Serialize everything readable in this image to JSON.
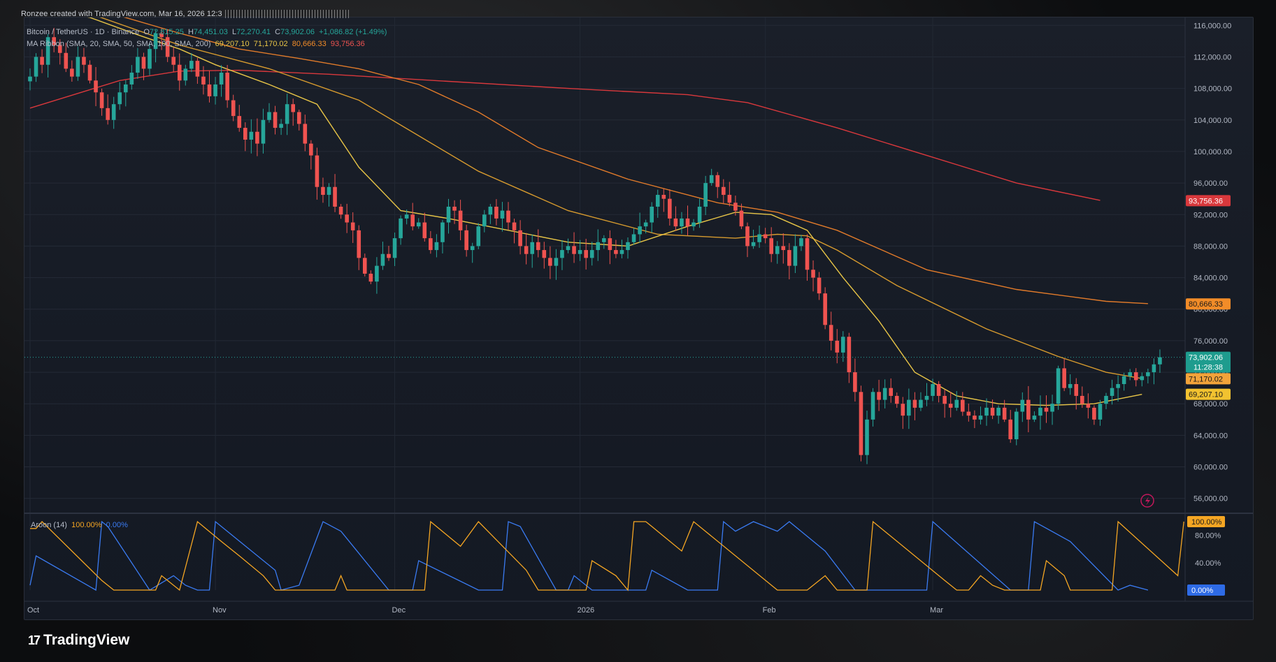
{
  "credit": "Ronzee created with TradingView.com, Mar 16, 2026 12:3",
  "header": {
    "symbol": "Bitcoin / TetherUS · 1D · Binance",
    "open_label": "O",
    "open": "72,815.25",
    "high_label": "H",
    "high": "74,451.03",
    "low_label": "L",
    "low": "72,270.41",
    "close_label": "C",
    "close": "73,902.06",
    "change": "+1,086.82 (+1.49%)",
    "ma_label": "MA Ribbon (SMA, 20, SMA, 50, SMA, 100, SMA, 200)",
    "ma_values": [
      "69,207.10",
      "71,170.02",
      "80,666.33",
      "93,756.36"
    ]
  },
  "aroon": {
    "label": "Aroon (14)",
    "up": "100.00%",
    "down": "0.00%",
    "ticks": [
      "100.00%",
      "80.00%",
      "40.00%",
      "0.00%"
    ]
  },
  "brand": {
    "logo": "17",
    "name": "TradingView"
  },
  "colors": {
    "up": "#26a69a",
    "down": "#ef5350",
    "sma20": "#e8c547",
    "sma50": "#d69a2e",
    "sma100": "#e07a2a",
    "sma200": "#d9383c",
    "aroon_up": "#f5a623",
    "aroon_down": "#3a7bf2"
  },
  "chart_data": {
    "type": "candlestick",
    "title": "Bitcoin / TetherUS · 1D · Binance",
    "y_ticks": [
      116000,
      112000,
      108000,
      104000,
      100000,
      96000,
      92000,
      88000,
      84000,
      80000,
      76000,
      72000,
      68000,
      64000,
      60000,
      56000
    ],
    "y_tick_labels": [
      "116,000.00",
      "112,000.00",
      "108,000.00",
      "104,000.00",
      "100,000.00",
      "96,000.00",
      "92,000.00",
      "88,000.00",
      "84,000.00",
      "80,000.00",
      "76,000.00",
      "72,000.00",
      "68,000.00",
      "64,000.00",
      "60,000.00",
      "56,000.00"
    ],
    "ylim": [
      55000,
      117000
    ],
    "x_labels": [
      "Oct",
      "Nov",
      "Dec",
      "2026",
      "Feb",
      "Mar"
    ],
    "x_label_index": [
      0,
      31,
      61,
      92,
      123,
      151
    ],
    "price_badges": [
      {
        "label": "93,756.36",
        "value": 93756.36,
        "color": "#d9383c",
        "text": "#ffffff"
      },
      {
        "label": "80,666.33",
        "value": 80666.33,
        "color": "#f28c28",
        "text": "#1a1a1a"
      },
      {
        "label": "73,902.06",
        "value": 73902.06,
        "color": "#1e9c8e",
        "text": "#ffffff",
        "sub": "11:28:38"
      },
      {
        "label": "71,170.02",
        "value": 71170.02,
        "color": "#f2a33a",
        "text": "#1a1a1a"
      },
      {
        "label": "69,207.10",
        "value": 69207.1,
        "color": "#f2c230",
        "text": "#1a1a1a"
      }
    ],
    "closes": [
      109500,
      112000,
      111000,
      114500,
      113500,
      112500,
      110500,
      109500,
      112000,
      111000,
      109000,
      107500,
      105500,
      104000,
      106000,
      107500,
      108500,
      110000,
      112000,
      110500,
      113000,
      115000,
      114500,
      112000,
      111000,
      109000,
      110500,
      111500,
      109500,
      108500,
      107000,
      108500,
      110000,
      106500,
      104500,
      103000,
      101500,
      102500,
      101000,
      104000,
      105000,
      103000,
      103500,
      106000,
      105000,
      103500,
      101000,
      99500,
      95500,
      94500,
      95500,
      93000,
      92000,
      91000,
      90000,
      86500,
      84500,
      83500,
      85500,
      87000,
      86500,
      89000,
      91500,
      92000,
      90500,
      91000,
      89000,
      87500,
      88500,
      91000,
      93000,
      92500,
      90000,
      87500,
      88000,
      90500,
      92000,
      93000,
      91500,
      92500,
      91000,
      90000,
      88000,
      87000,
      88500,
      87500,
      86500,
      85500,
      86500,
      87500,
      88000,
      87000,
      87500,
      86500,
      87500,
      88500,
      89000,
      87500,
      87000,
      87500,
      88500,
      89500,
      90500,
      91000,
      93000,
      94500,
      94000,
      91500,
      90500,
      91500,
      90500,
      91000,
      93000,
      96000,
      97000,
      95500,
      94500,
      93500,
      92500,
      90500,
      88000,
      88500,
      89500,
      89000,
      87000,
      88000,
      87500,
      85500,
      88000,
      89000,
      85000,
      84000,
      82000,
      78000,
      76000,
      74500,
      76500,
      72000,
      69500,
      61500,
      66000,
      69500,
      68500,
      70000,
      69000,
      68000,
      66500,
      68500,
      67500,
      68500,
      69000,
      70500,
      69000,
      68000,
      67500,
      68500,
      67000,
      66500,
      66000,
      66500,
      67500,
      66500,
      67500,
      66000,
      63500,
      67000,
      68500,
      66000,
      66500,
      67500,
      67000,
      68000,
      72500,
      70000,
      70500,
      69000,
      68000,
      67500,
      66000,
      68000,
      69000,
      70000,
      70500,
      71500,
      72000,
      71000,
      71500,
      72000,
      73000,
      73900
    ],
    "sma20": [
      [
        0,
        118500
      ],
      [
        10,
        117000
      ],
      [
        18,
        114800
      ],
      [
        25,
        113000
      ],
      [
        31,
        111000
      ],
      [
        40,
        108500
      ],
      [
        48,
        106000
      ],
      [
        55,
        98000
      ],
      [
        62,
        92500
      ],
      [
        70,
        91500
      ],
      [
        80,
        90000
      ],
      [
        90,
        88500
      ],
      [
        100,
        88000
      ],
      [
        110,
        90500
      ],
      [
        118,
        92300
      ],
      [
        124,
        92000
      ],
      [
        130,
        90000
      ],
      [
        136,
        84000
      ],
      [
        142,
        78500
      ],
      [
        148,
        72000
      ],
      [
        155,
        69000
      ],
      [
        162,
        68000
      ],
      [
        170,
        67800
      ],
      [
        178,
        68000
      ],
      [
        184,
        68900
      ],
      [
        186,
        69200
      ]
    ],
    "sma50": [
      [
        0,
        119000
      ],
      [
        10,
        117500
      ],
      [
        25,
        113500
      ],
      [
        40,
        110500
      ],
      [
        55,
        106500
      ],
      [
        65,
        102000
      ],
      [
        75,
        97500
      ],
      [
        90,
        92500
      ],
      [
        105,
        89500
      ],
      [
        118,
        89000
      ],
      [
        125,
        89500
      ],
      [
        130,
        89300
      ],
      [
        135,
        87500
      ],
      [
        145,
        83000
      ],
      [
        160,
        77500
      ],
      [
        172,
        74000
      ],
      [
        180,
        72000
      ],
      [
        186,
        71200
      ]
    ],
    "sma100": [
      [
        15,
        117200
      ],
      [
        25,
        115000
      ],
      [
        35,
        113000
      ],
      [
        45,
        111800
      ],
      [
        55,
        110500
      ],
      [
        65,
        108500
      ],
      [
        75,
        105000
      ],
      [
        85,
        100500
      ],
      [
        100,
        96500
      ],
      [
        115,
        93500
      ],
      [
        125,
        92300
      ],
      [
        135,
        90000
      ],
      [
        150,
        85000
      ],
      [
        165,
        82500
      ],
      [
        180,
        81000
      ],
      [
        187,
        80700
      ]
    ],
    "sma200": [
      [
        0,
        105500
      ],
      [
        15,
        109000
      ],
      [
        25,
        110200
      ],
      [
        35,
        110300
      ],
      [
        50,
        109800
      ],
      [
        70,
        108900
      ],
      [
        90,
        108000
      ],
      [
        110,
        107200
      ],
      [
        120,
        106200
      ],
      [
        135,
        103000
      ],
      [
        150,
        99500
      ],
      [
        165,
        96000
      ],
      [
        179,
        93800
      ]
    ],
    "aroon_up": [
      [
        0,
        90
      ],
      [
        1,
        90
      ],
      [
        2,
        100
      ],
      [
        12,
        14
      ],
      [
        14,
        0
      ],
      [
        21,
        0
      ],
      [
        22,
        21
      ],
      [
        25,
        0
      ],
      [
        28,
        100
      ],
      [
        32,
        71
      ],
      [
        35,
        50
      ],
      [
        39,
        21
      ],
      [
        41,
        0
      ],
      [
        51,
        0
      ],
      [
        52,
        21
      ],
      [
        53,
        0
      ],
      [
        59,
        0
      ],
      [
        66,
        0
      ],
      [
        67,
        100
      ],
      [
        72,
        64
      ],
      [
        75,
        100
      ],
      [
        83,
        29
      ],
      [
        85,
        0
      ],
      [
        93,
        0
      ],
      [
        94,
        43
      ],
      [
        98,
        21
      ],
      [
        100,
        0
      ],
      [
        101,
        100
      ],
      [
        103,
        100
      ],
      [
        104,
        93
      ],
      [
        109,
        57
      ],
      [
        111,
        100
      ],
      [
        125,
        0
      ],
      [
        130,
        0
      ],
      [
        133,
        21
      ],
      [
        135,
        0
      ],
      [
        140,
        0
      ],
      [
        141,
        100
      ],
      [
        153,
        14
      ],
      [
        155,
        0
      ],
      [
        157,
        0
      ],
      [
        159,
        21
      ],
      [
        161,
        7
      ],
      [
        163,
        0
      ],
      [
        169,
        0
      ],
      [
        170,
        43
      ],
      [
        173,
        21
      ],
      [
        174,
        0
      ],
      [
        181,
        0
      ],
      [
        182,
        100
      ],
      [
        192,
        21
      ],
      [
        193,
        100
      ]
    ],
    "aroon_down": [
      [
        0,
        7
      ],
      [
        1,
        50
      ],
      [
        11,
        0
      ],
      [
        12,
        100
      ],
      [
        13,
        93
      ],
      [
        20,
        0
      ],
      [
        24,
        21
      ],
      [
        26,
        7
      ],
      [
        28,
        0
      ],
      [
        30,
        0
      ],
      [
        31,
        100
      ],
      [
        41,
        29
      ],
      [
        42,
        0
      ],
      [
        45,
        7
      ],
      [
        49,
        100
      ],
      [
        52,
        86
      ],
      [
        60,
        0
      ],
      [
        64,
        0
      ],
      [
        65,
        43
      ],
      [
        75,
        0
      ],
      [
        79,
        0
      ],
      [
        80,
        100
      ],
      [
        82,
        93
      ],
      [
        88,
        0
      ],
      [
        90,
        0
      ],
      [
        91,
        21
      ],
      [
        94,
        0
      ],
      [
        103,
        0
      ],
      [
        104,
        29
      ],
      [
        110,
        0
      ],
      [
        115,
        0
      ],
      [
        116,
        100
      ],
      [
        118,
        86
      ],
      [
        121,
        100
      ],
      [
        125,
        86
      ],
      [
        127,
        100
      ],
      [
        133,
        57
      ],
      [
        138,
        0
      ],
      [
        150,
        0
      ],
      [
        151,
        100
      ],
      [
        164,
        0
      ],
      [
        167,
        0
      ],
      [
        168,
        100
      ],
      [
        174,
        71
      ],
      [
        182,
        0
      ],
      [
        184,
        7
      ],
      [
        187,
        0
      ]
    ]
  }
}
